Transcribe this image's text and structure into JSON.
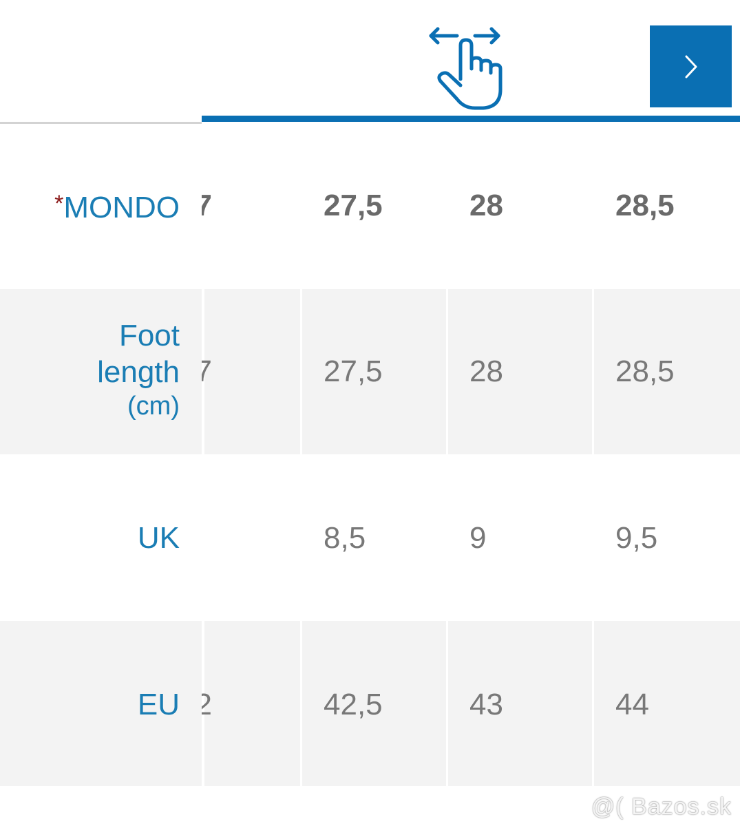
{
  "nav": {
    "swipe_icon": "swipe-horizontal-hand-icon",
    "next_icon": "chevron-right-icon",
    "accent_color": "#0a6fb3"
  },
  "table": {
    "rows": [
      {
        "label_prefix": "*",
        "label": "MONDO",
        "partial": "7",
        "values": [
          "27,5",
          "28",
          "28,5"
        ]
      },
      {
        "label_line1": "Foot",
        "label_line2": "length",
        "label_line3": "(cm)",
        "partial": "7",
        "values": [
          "27,5",
          "28",
          "28,5"
        ]
      },
      {
        "label": "UK",
        "partial": "",
        "values": [
          "8,5",
          "9",
          "9,5"
        ]
      },
      {
        "label": "EU",
        "partial": "2",
        "values": [
          "42,5",
          "43",
          "44"
        ]
      }
    ]
  },
  "watermark": "@( Bazos.sk"
}
